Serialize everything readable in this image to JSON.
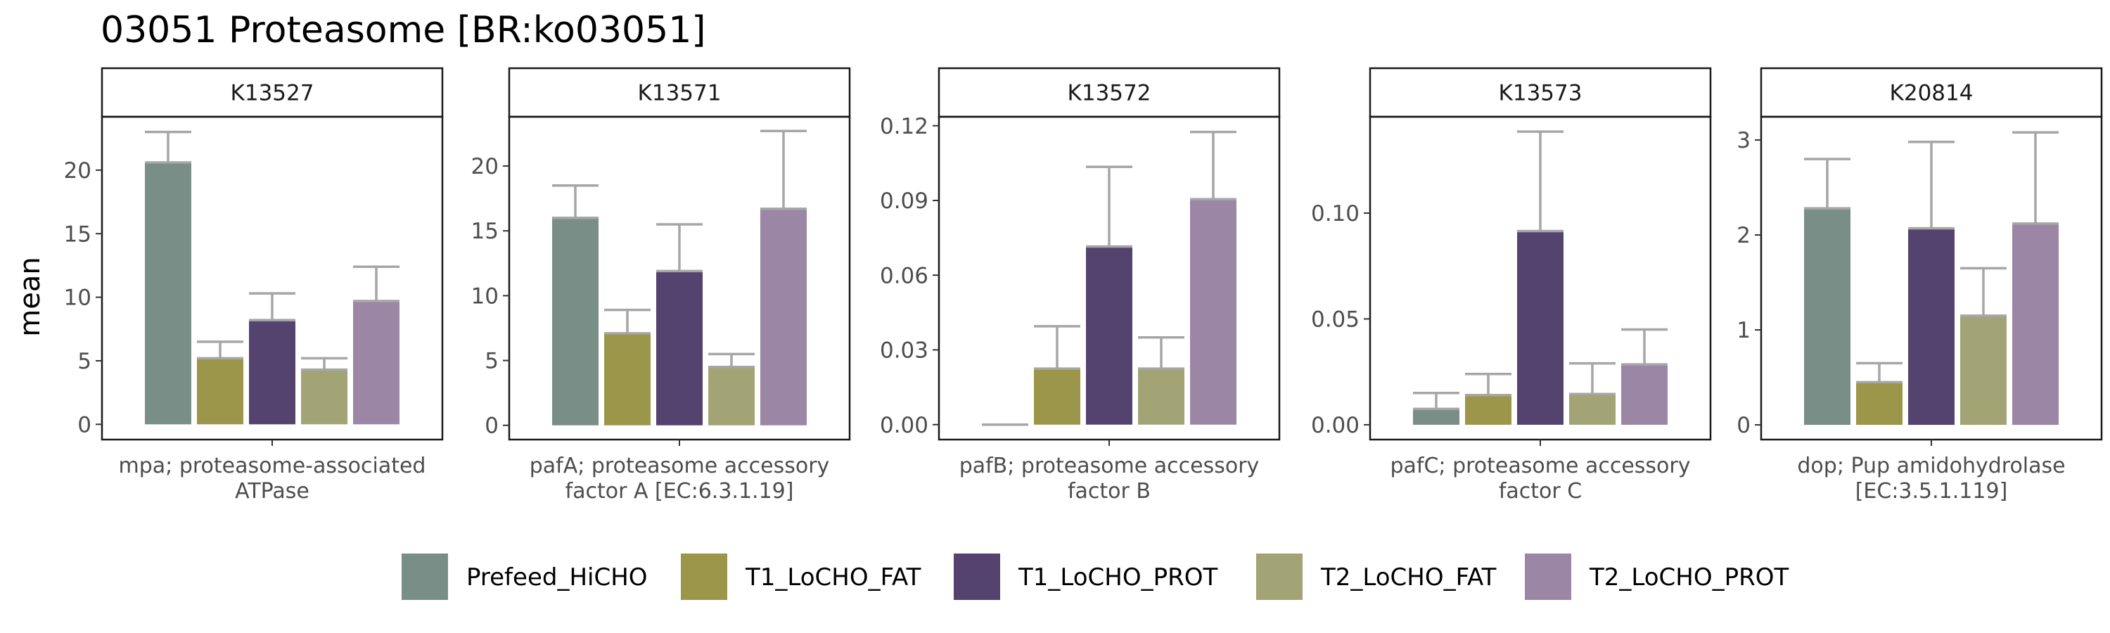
{
  "title": "03051 Proteasome [BR:ko03051]",
  "ylabel": "mean",
  "chart_data": {
    "type": "bar",
    "title": "03051 Proteasome [BR:ko03051]",
    "ylabel": "mean",
    "groups": [
      "Prefeed_HiCHO",
      "T1_LoCHO_FAT",
      "T1_LoCHO_PROT",
      "T2_LoCHO_FAT",
      "T2_LoCHO_PROT"
    ],
    "colors": {
      "Prefeed_HiCHO": "#798E87",
      "T1_LoCHO_FAT": "#9C964A",
      "T1_LoCHO_PROT": "#54436E",
      "T2_LoCHO_FAT": "#A2A475",
      "T2_LoCHO_PROT": "#9B86A5"
    },
    "error_bar_color": "#A6A6A6",
    "panels": [
      {
        "strip": "K13527",
        "category": [
          "mpa; proteasome-associated",
          "ATPase"
        ],
        "ylim": [
          -1.2,
          24.2
        ],
        "ticks": [
          0,
          5,
          10,
          15,
          20
        ],
        "tick_labels": [
          "0",
          "5",
          "10",
          "15",
          "20"
        ],
        "values": [
          20.6,
          5.2,
          8.2,
          4.3,
          9.7
        ],
        "errors": [
          23.0,
          6.5,
          10.3,
          5.2,
          12.4
        ]
      },
      {
        "strip": "K13571",
        "category": [
          "pafA; proteasome accessory",
          "factor A [EC:6.3.1.19]"
        ],
        "ylim": [
          -1.1,
          23.8
        ],
        "ticks": [
          0,
          5,
          10,
          15,
          20
        ],
        "tick_labels": [
          "0",
          "5",
          "10",
          "15",
          "20"
        ],
        "values": [
          16.0,
          7.1,
          11.9,
          4.5,
          16.7
        ],
        "errors": [
          18.5,
          8.9,
          15.5,
          5.5,
          22.7
        ]
      },
      {
        "strip": "K13572",
        "category": [
          "pafB; proteasome accessory",
          "factor B"
        ],
        "ylim": [
          -0.006,
          0.1236
        ],
        "ticks": [
          0,
          0.03,
          0.06,
          0.09,
          0.12
        ],
        "tick_labels": [
          "0.00",
          "0.03",
          "0.06",
          "0.09",
          "0.12"
        ],
        "values": [
          0.0,
          0.0225,
          0.0715,
          0.0225,
          0.0905
        ],
        "errors": [
          0.0,
          0.0395,
          0.1035,
          0.035,
          0.1175
        ]
      },
      {
        "strip": "K13573",
        "category": [
          "pafC; proteasome accessory",
          "factor C"
        ],
        "ylim": [
          -0.007,
          0.1455
        ],
        "ticks": [
          0,
          0.05,
          0.1
        ],
        "tick_labels": [
          "0.00",
          "0.05",
          "0.10"
        ],
        "values": [
          0.0075,
          0.014,
          0.0915,
          0.0145,
          0.0285
        ],
        "errors": [
          0.015,
          0.024,
          0.1385,
          0.029,
          0.045
        ]
      },
      {
        "strip": "K20814",
        "category": [
          "dop; Pup amidohydrolase",
          "[EC:3.5.1.119]"
        ],
        "ylim": [
          -0.155,
          3.245
        ],
        "ticks": [
          0,
          1,
          2,
          3
        ],
        "tick_labels": [
          "0",
          "1",
          "2",
          "3"
        ],
        "values": [
          2.28,
          0.45,
          2.07,
          1.15,
          2.12
        ],
        "errors": [
          2.8,
          0.65,
          2.98,
          1.65,
          3.08
        ]
      }
    ],
    "legend": {
      "position": "bottom",
      "entries": [
        "Prefeed_HiCHO",
        "T1_LoCHO_FAT",
        "T1_LoCHO_PROT",
        "T2_LoCHO_FAT",
        "T2_LoCHO_PROT"
      ]
    }
  }
}
